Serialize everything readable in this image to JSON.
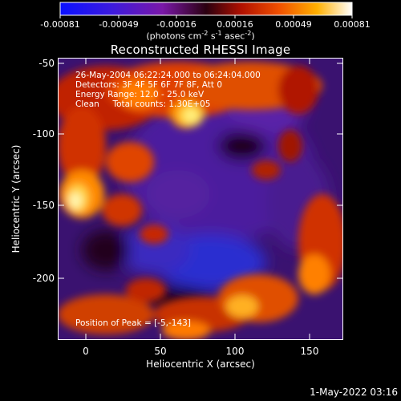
{
  "colorbar": {
    "tick_labels": [
      "-0.00081",
      "-0.00049",
      "-0.00016",
      "0.00016",
      "0.00049",
      "0.00081"
    ],
    "unit_main": "(photons cm",
    "unit_sup1": "-2",
    "unit_s": " s",
    "unit_sup2": "-1",
    "unit_asec": " asec",
    "unit_sup3": "-2",
    "unit_close": ")"
  },
  "plot": {
    "title": "Reconstructed RHESSI Image",
    "annotations": [
      "26-May-2004 06:22:24.000 to 06:24:04.000",
      "Detectors: 3F 4F 5F 6F 7F 8F, Att 0",
      "Energy Range: 12.0 - 25.0 keV",
      "Clean     Total counts: 1.30E+05"
    ],
    "peak_text": "Position of Peak = [-5,-143]",
    "xlabel": "Heliocentric X (arcsec)",
    "ylabel": "Heliocentric Y (arcsec)",
    "x_ticks": [
      "0",
      "50",
      "100",
      "150"
    ],
    "y_ticks": [
      "-50",
      "-100",
      "-150",
      "-200"
    ],
    "x_range": [
      -18,
      172
    ],
    "y_range": [
      -237,
      -49
    ],
    "colormap": "blue-purple-red-orange-yellow-white",
    "peak_position": [
      -5,
      -143
    ]
  },
  "footer": {
    "timestamp": "1-May-2022 03:16"
  }
}
